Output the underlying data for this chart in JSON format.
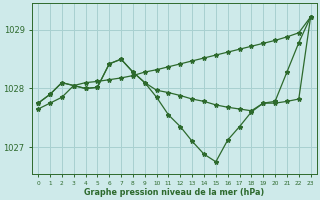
{
  "title": "Graphe pression niveau de la mer (hPa)",
  "background_color": "#ceeaea",
  "grid_color": "#a8d0d0",
  "line_color": "#2d6a2d",
  "xlim": [
    -0.5,
    23.5
  ],
  "ylim": [
    1026.55,
    1029.45
  ],
  "yticks": [
    1027,
    1028,
    1029
  ],
  "xticks": [
    0,
    1,
    2,
    3,
    4,
    5,
    6,
    7,
    8,
    9,
    10,
    11,
    12,
    13,
    14,
    15,
    16,
    17,
    18,
    19,
    20,
    21,
    22,
    23
  ],
  "series1_x": [
    0,
    1,
    2,
    3,
    4,
    5,
    6,
    7,
    8,
    9,
    10,
    11,
    12,
    13,
    14,
    15,
    16,
    17,
    18,
    19,
    20,
    21,
    22,
    23
  ],
  "series1_y": [
    1027.65,
    1027.75,
    1027.85,
    1028.05,
    1028.1,
    1028.12,
    1028.15,
    1028.18,
    1028.22,
    1028.28,
    1028.32,
    1028.37,
    1028.42,
    1028.47,
    1028.52,
    1028.57,
    1028.62,
    1028.67,
    1028.72,
    1028.77,
    1028.82,
    1028.88,
    1028.95,
    1029.22
  ],
  "series2_x": [
    0,
    1,
    2,
    3,
    4,
    5,
    6,
    7,
    8,
    9,
    10,
    11,
    12,
    13,
    14,
    15,
    16,
    17,
    18,
    19,
    20,
    21,
    22,
    23
  ],
  "series2_y": [
    1027.75,
    1027.9,
    1028.1,
    1028.05,
    1028.0,
    1028.02,
    1028.42,
    1028.5,
    1028.28,
    1028.1,
    1027.97,
    1027.93,
    1027.88,
    1027.82,
    1027.78,
    1027.72,
    1027.68,
    1027.65,
    1027.62,
    1027.75,
    1027.75,
    1027.78,
    1027.82,
    1029.22
  ],
  "series3_x": [
    0,
    1,
    2,
    3,
    4,
    5,
    6,
    7,
    8,
    9,
    10,
    11,
    12,
    13,
    14,
    15,
    16,
    17,
    18,
    19,
    20,
    21,
    22,
    23
  ],
  "series3_y": [
    1027.75,
    1027.9,
    1028.1,
    1028.05,
    1028.0,
    1028.02,
    1028.42,
    1028.5,
    1028.28,
    1028.1,
    1027.85,
    1027.55,
    1027.35,
    1027.1,
    1026.88,
    1026.75,
    1027.12,
    1027.35,
    1027.6,
    1027.75,
    1027.78,
    1028.28,
    1028.78,
    1029.22
  ]
}
